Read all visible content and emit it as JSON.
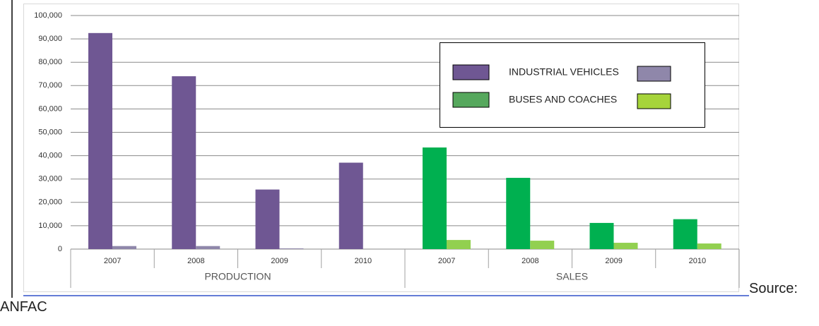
{
  "chart_data": {
    "type": "bar",
    "groups": [
      "PRODUCTION",
      "SALES"
    ],
    "categories": [
      "2007",
      "2008",
      "2009",
      "2010",
      "2007",
      "2008",
      "2009",
      "2010"
    ],
    "series": [
      {
        "color": "#6f5793",
        "values": [
          92500,
          74000,
          25500,
          37000,
          null,
          null,
          null,
          null
        ]
      },
      {
        "color": "#8f87aa",
        "values": [
          1300,
          1300,
          300,
          null,
          null,
          null,
          null,
          null
        ]
      },
      {
        "color": "#00b050",
        "values": [
          null,
          null,
          null,
          null,
          43500,
          30500,
          11200,
          12800
        ]
      },
      {
        "color": "#92d050",
        "values": [
          null,
          null,
          null,
          null,
          3900,
          3600,
          2700,
          2400
        ]
      }
    ],
    "legend": [
      {
        "label": "INDUSTRIAL VEHICLES",
        "colors": [
          "#6f5793",
          "#8f87aa"
        ]
      },
      {
        "label": "BUSES AND COACHES",
        "colors": [
          "#56a85d",
          "#a6d43a"
        ]
      }
    ],
    "ylim": [
      0,
      100000
    ],
    "yticks": [
      0,
      {
        "value": 10000,
        "label": "10,000"
      },
      {
        "value": 20000,
        "label": "20,000"
      },
      {
        "value": 30000,
        "label": "30,000"
      },
      {
        "value": 40000,
        "label": "40,000"
      },
      {
        "value": 50000,
        "label": "50,000"
      },
      {
        "value": 60000,
        "label": "60,000"
      },
      {
        "value": 70000,
        "label": "70,000"
      },
      {
        "value": 80000,
        "label": "80,000"
      },
      {
        "value": 90000,
        "label": "90,000"
      },
      {
        "value": 100000,
        "label": "100,000"
      }
    ],
    "grid": true
  },
  "source": "Source: ANFAC"
}
